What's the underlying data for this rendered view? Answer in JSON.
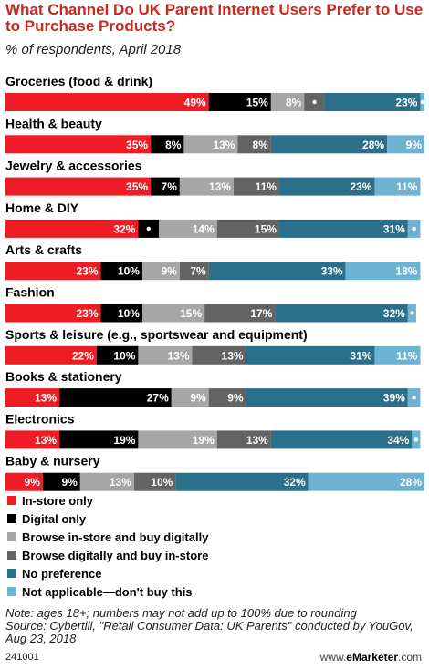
{
  "header": {
    "title": "What Channel Do UK Parent Internet Users Prefer to Use to Purchase Products?",
    "subtitle": "% of respondents, April 2018"
  },
  "chart_data": {
    "type": "bar",
    "stacked": true,
    "orientation": "horizontal",
    "categories": [
      "Groceries (food & drink)",
      "Health & beauty",
      "Jewelry & accessories",
      "Home & DIY",
      "Arts & crafts",
      "Fashion",
      "Sports & leisure (e.g., sportswear and equipment)",
      "Books & stationery",
      "Electronics",
      "Baby & nursery"
    ],
    "series": [
      {
        "name": "In-store only",
        "color": "#ee1c24",
        "label_color": "#ffffff",
        "values": [
          49,
          35,
          35,
          32,
          23,
          23,
          22,
          13,
          13,
          9
        ]
      },
      {
        "name": "Digital only",
        "color": "#000000",
        "label_color": "#ffffff",
        "values": [
          15,
          8,
          7,
          5,
          10,
          10,
          10,
          27,
          19,
          9
        ]
      },
      {
        "name": "Browse in-store and buy digitally",
        "color": "#a6a6a6",
        "label_color": "#ffffff",
        "values": [
          8,
          13,
          13,
          14,
          9,
          15,
          13,
          9,
          19,
          13
        ]
      },
      {
        "name": "Browse digitally and buy in-store",
        "color": "#636363",
        "label_color": "#ffffff",
        "values": [
          5,
          8,
          11,
          15,
          7,
          17,
          13,
          9,
          13,
          10
        ]
      },
      {
        "name": "No preference",
        "color": "#2b708a",
        "label_color": "#ffffff",
        "values": [
          23,
          28,
          23,
          31,
          33,
          32,
          31,
          39,
          34,
          32
        ]
      },
      {
        "name": "Not applicable—don't buy this",
        "color": "#6fb3d2",
        "label_color": "#ffffff",
        "values": [
          1,
          9,
          11,
          3,
          18,
          2,
          11,
          3,
          2,
          28
        ]
      }
    ],
    "value_suffix": "%",
    "xlim": [
      0,
      101
    ],
    "grid": false,
    "legend_position": "bottom-left"
  },
  "footer": {
    "note": "Note: ages 18+; numbers may not add up to 100% due to rounding",
    "source": "Source: Cybertill, \"Retail Consumer Data: UK Parents\" conducted by YouGov, Aug 23, 2018",
    "chart_id": "241001",
    "brand_prefix": "www.",
    "brand_name": "eMarketer",
    "brand_suffix": ".com"
  }
}
